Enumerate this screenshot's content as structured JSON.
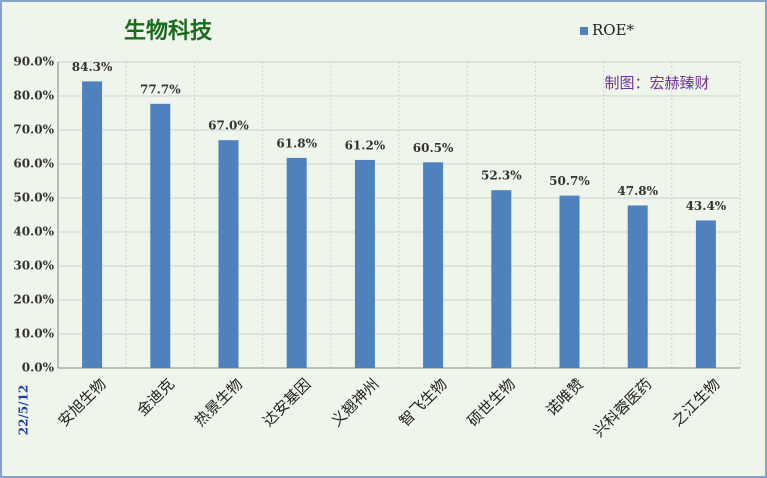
{
  "chart_data": {
    "type": "bar",
    "title": "生物科技",
    "annotation": "制图：宏赫臻财",
    "date": "22/5/12",
    "categories": [
      "安旭生物",
      "金迪克",
      "热景生物",
      "达安基因",
      "义翘神州",
      "智飞生物",
      "硕世生物",
      "诺唯赞",
      "兴科蓉医药",
      "之江生物"
    ],
    "series": [
      {
        "name": "ROE*",
        "color": "#4f81bd",
        "values": [
          84.3,
          77.7,
          67.0,
          61.8,
          61.2,
          60.5,
          52.3,
          50.7,
          47.8,
          43.4
        ],
        "value_labels": [
          "84.3%",
          "77.7%",
          "67.0%",
          "61.8%",
          "61.2%",
          "60.5%",
          "52.3%",
          "50.7%",
          "47.8%",
          "43.4%"
        ]
      }
    ],
    "ylim": [
      0,
      90
    ],
    "yticks": [
      {
        "value": 0,
        "label": "0.0%"
      },
      {
        "value": 10,
        "label": "10.0%"
      },
      {
        "value": 20,
        "label": "20.0%"
      },
      {
        "value": 30,
        "label": "30.0%"
      },
      {
        "value": 40,
        "label": "40.0%"
      },
      {
        "value": 50,
        "label": "50.0%"
      },
      {
        "value": 60,
        "label": "60.0%"
      },
      {
        "value": 70,
        "label": "70.0%"
      },
      {
        "value": 80,
        "label": "80.0%"
      },
      {
        "value": 90,
        "label": "90.0%"
      }
    ],
    "grid": true
  }
}
